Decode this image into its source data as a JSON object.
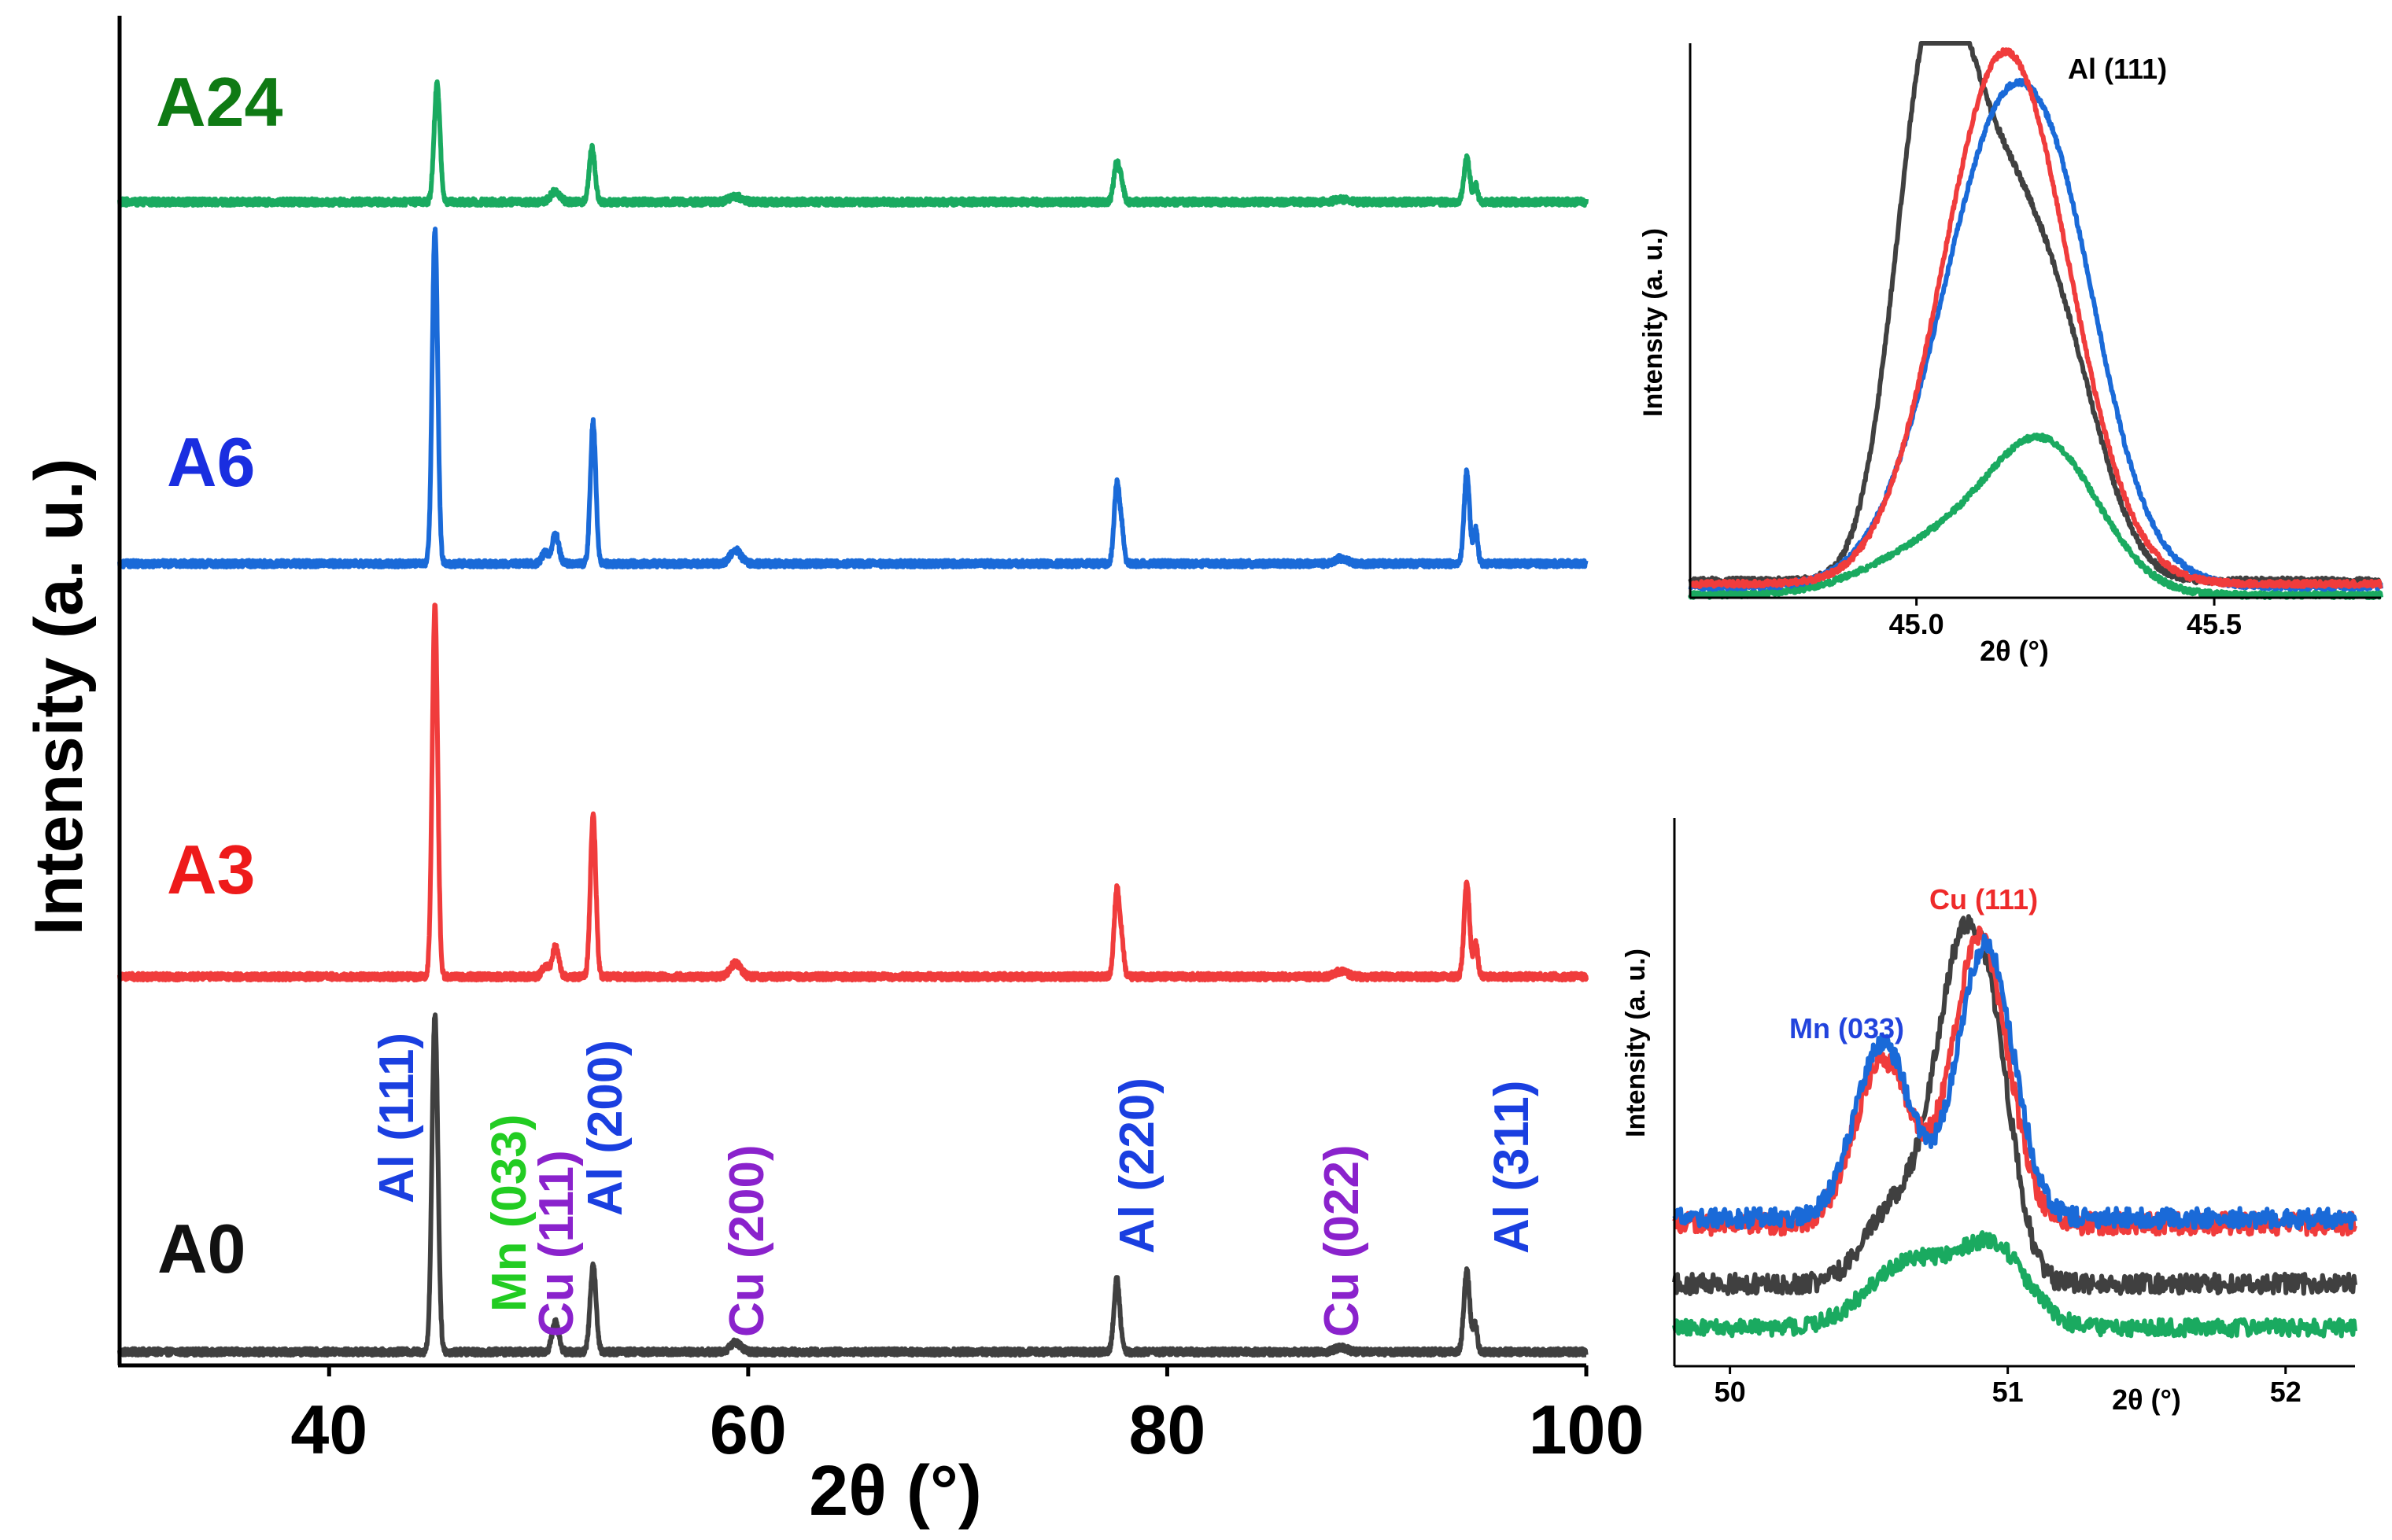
{
  "colors": {
    "A0": "#404040",
    "A3": "#f03c3c",
    "A6": "#1a6ad8",
    "A24": "#1aaa60",
    "al_label": "#1a3fe0",
    "cu_label": "#8a22cc",
    "mn_label": "#22cc22",
    "cu111_label": "#ee2a2a",
    "mn033_label": "#2244dd",
    "sample_A24": "#0f7a14",
    "sample_A6": "#1a2ee0",
    "sample_A3": "#ee1a1a",
    "sample_A0": "#111111",
    "axis": "#000000"
  },
  "chart_data": [
    {
      "type": "line",
      "id": "main",
      "xlabel": "2θ (°)",
      "ylabel": "Intensity (a. u.)",
      "xlim": [
        30,
        100
      ],
      "ylim": [
        0,
        1
      ],
      "x_ticks": [
        40,
        60,
        80,
        100
      ],
      "x_tick_labels": [
        "40",
        "60",
        "80",
        "100"
      ],
      "peak_width": 0.13,
      "series": [
        {
          "name": "A0",
          "label": "A0",
          "baseline": 0.01,
          "noise": 0.0025,
          "peaks": [
            [
              45.05,
              0.25,
              0.14
            ],
            [
              50.8,
              0.022,
              0.16
            ],
            [
              52.6,
              0.065,
              0.14
            ],
            [
              59.4,
              0.007,
              0.25
            ],
            [
              77.6,
              0.054,
              0.14
            ],
            [
              88.3,
              0.003,
              0.3
            ],
            [
              94.3,
              0.06,
              0.14
            ],
            [
              94.7,
              0.02,
              0.1
            ]
          ]
        },
        {
          "name": "A3",
          "label": "A3",
          "baseline": 0.288,
          "noise": 0.0025,
          "peaks": [
            [
              45.05,
              0.275,
              0.13
            ],
            [
              50.8,
              0.022,
              0.16
            ],
            [
              50.3,
              0.008,
              0.15
            ],
            [
              52.6,
              0.12,
              0.13
            ],
            [
              59.4,
              0.01,
              0.25
            ],
            [
              77.6,
              0.065,
              0.13
            ],
            [
              77.85,
              0.02,
              0.1
            ],
            [
              88.3,
              0.004,
              0.3
            ],
            [
              94.3,
              0.07,
              0.13
            ],
            [
              94.72,
              0.026,
              0.1
            ]
          ]
        },
        {
          "name": "A6",
          "label": "A6",
          "baseline": 0.594,
          "noise": 0.0025,
          "peaks": [
            [
              45.05,
              0.247,
              0.13
            ],
            [
              50.8,
              0.022,
              0.16
            ],
            [
              50.3,
              0.008,
              0.15
            ],
            [
              52.6,
              0.105,
              0.13
            ],
            [
              59.4,
              0.01,
              0.25
            ],
            [
              77.6,
              0.06,
              0.13
            ],
            [
              77.85,
              0.02,
              0.1
            ],
            [
              88.3,
              0.004,
              0.3
            ],
            [
              94.3,
              0.068,
              0.13
            ],
            [
              94.72,
              0.026,
              0.1
            ]
          ]
        },
        {
          "name": "A24",
          "label": "A24",
          "baseline": 0.862,
          "noise": 0.0025,
          "peaks": [
            [
              45.15,
              0.087,
              0.14
            ],
            [
              50.8,
              0.008,
              0.22
            ],
            [
              52.55,
              0.04,
              0.14
            ],
            [
              59.4,
              0.004,
              0.3
            ],
            [
              77.6,
              0.03,
              0.14
            ],
            [
              77.85,
              0.01,
              0.1
            ],
            [
              88.3,
              0.002,
              0.3
            ],
            [
              94.3,
              0.032,
              0.14
            ],
            [
              94.72,
              0.012,
              0.1
            ]
          ]
        }
      ],
      "annotations": [
        {
          "text": "Al (111)",
          "x": 44.2,
          "y": 0.13,
          "color_key": "al_label"
        },
        {
          "text": "Mn (033)",
          "x": 48.2,
          "y": 0.05,
          "color_key": "mn_label"
        },
        {
          "text": "Cu (111)",
          "x": 50.5,
          "y": 0.05,
          "color_key": "cu_label"
        },
        {
          "text": "Al (200)",
          "x": 52.7,
          "y": 0.11,
          "color_key": "al_label"
        },
        {
          "text": "Cu (200)",
          "x": 58.8,
          "y": 0.02,
          "color_key": "cu_label"
        },
        {
          "text": "Al (220)",
          "x": 76.6,
          "y": 0.07,
          "color_key": "al_label"
        },
        {
          "text": "Cu (022)",
          "x": 87.6,
          "y": 0.02,
          "color_key": "cu_label"
        },
        {
          "text": "Al (311)",
          "x": 95.4,
          "y": 0.07,
          "color_key": "al_label"
        }
      ]
    },
    {
      "type": "line",
      "id": "inset_al111",
      "title": "Al (111)",
      "xlabel": "2θ (°)",
      "ylabel": "Intensity (a. u.)",
      "xlim": [
        44.62,
        45.78
      ],
      "ylim": [
        0,
        1
      ],
      "x_ticks": [
        45.0,
        45.5
      ],
      "x_tick_labels": [
        "45.0",
        "45.5"
      ],
      "series": [
        {
          "name": "A0",
          "baseline": 0.03,
          "noise": 0.006,
          "peaks": [
            [
              45.02,
              0.79,
              0.06
            ],
            [
              45.13,
              0.62,
              0.08
            ],
            [
              45.25,
              0.3,
              0.07
            ]
          ]
        },
        {
          "name": "A3",
          "baseline": 0.025,
          "noise": 0.005,
          "peaks": [
            [
              45.15,
              0.96,
              0.105
            ]
          ]
        },
        {
          "name": "A6",
          "baseline": 0.02,
          "noise": 0.005,
          "peaks": [
            [
              45.16,
              0.88,
              0.115
            ],
            [
              45.26,
              0.1,
              0.06
            ]
          ]
        },
        {
          "name": "A24",
          "baseline": 0.005,
          "noise": 0.005,
          "peaks": [
            [
              45.22,
              0.24,
              0.09
            ],
            [
              45.06,
              0.1,
              0.12
            ]
          ]
        }
      ]
    },
    {
      "type": "line",
      "id": "inset_cu111",
      "xlabel": "2θ (°)",
      "ylabel": "Intensity (a. u.)",
      "xlim": [
        49.8,
        52.25
      ],
      "ylim": [
        0,
        1
      ],
      "x_ticks": [
        50,
        51,
        52
      ],
      "x_tick_labels": [
        "50",
        "51",
        "52"
      ],
      "series": [
        {
          "name": "A0",
          "baseline": 0.15,
          "noise": 0.018,
          "peaks": [
            [
              50.6,
              0.14,
              0.11
            ],
            [
              50.82,
              0.52,
              0.09
            ],
            [
              50.95,
              0.34,
              0.08
            ]
          ]
        },
        {
          "name": "A3",
          "baseline": 0.26,
          "noise": 0.02,
          "peaks": [
            [
              50.55,
              0.3,
              0.1
            ],
            [
              50.9,
              0.52,
              0.1
            ]
          ]
        },
        {
          "name": "A6",
          "baseline": 0.27,
          "noise": 0.018,
          "peaks": [
            [
              50.55,
              0.32,
              0.1
            ],
            [
              50.92,
              0.5,
              0.1
            ]
          ]
        },
        {
          "name": "A24",
          "baseline": 0.07,
          "noise": 0.015,
          "peaks": [
            [
              50.65,
              0.12,
              0.15
            ],
            [
              50.95,
              0.14,
              0.12
            ]
          ]
        }
      ],
      "annotations": [
        {
          "text": "Cu (111)",
          "color_key": "cu111_label"
        },
        {
          "text": "Mn (033)",
          "color_key": "mn033_label"
        }
      ]
    }
  ]
}
